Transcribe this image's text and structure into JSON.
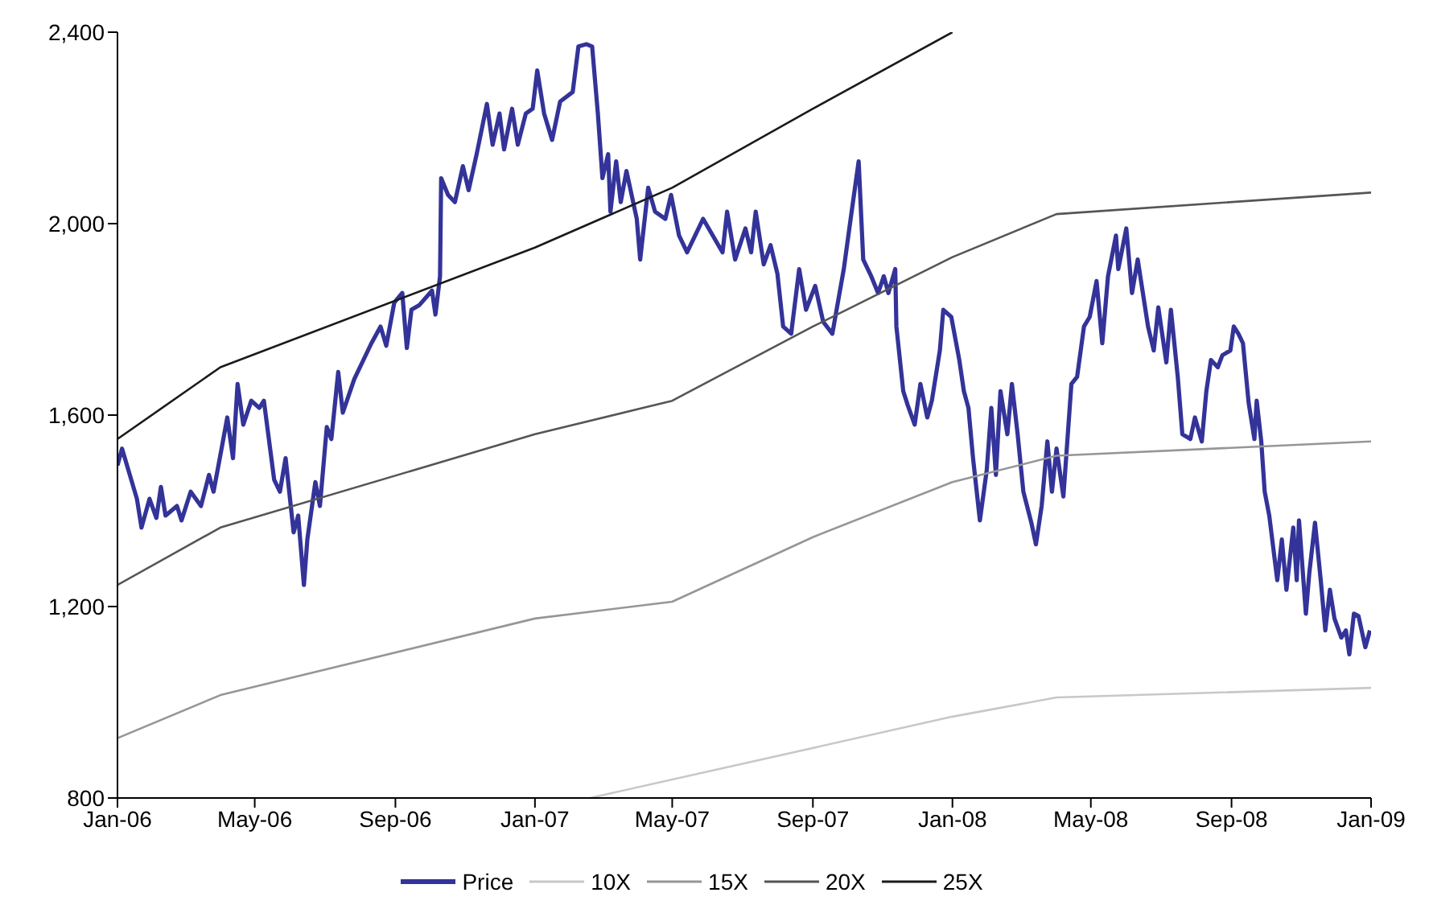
{
  "chart_data": {
    "type": "line",
    "xlim": [
      "2006-01-01",
      "2009-01-01"
    ],
    "xticks": [
      {
        "value": "2006-01-01",
        "label": "Jan-06"
      },
      {
        "value": "2006-05-01",
        "label": "May-06"
      },
      {
        "value": "2006-09-01",
        "label": "Sep-06"
      },
      {
        "value": "2007-01-01",
        "label": "Jan-07"
      },
      {
        "value": "2007-05-01",
        "label": "May-07"
      },
      {
        "value": "2007-09-01",
        "label": "Sep-07"
      },
      {
        "value": "2008-01-01",
        "label": "Jan-08"
      },
      {
        "value": "2008-05-01",
        "label": "May-08"
      },
      {
        "value": "2008-09-01",
        "label": "Sep-08"
      },
      {
        "value": "2009-01-01",
        "label": "Jan-09"
      }
    ],
    "ylim": [
      800,
      2400
    ],
    "yticks": [
      800,
      {
        "value": 1200,
        "label": "1,200"
      },
      {
        "value": 1600,
        "label": "1,600"
      },
      {
        "value": 2000,
        "label": "2,000"
      },
      {
        "value": 2400,
        "label": "2,400"
      }
    ],
    "legend": "bottom",
    "marker": "none",
    "line_style": "solid",
    "series": [
      {
        "name": "Price",
        "color": "#333399",
        "x": [
          "2006-01-01",
          "2006-01-05",
          "2006-01-18",
          "2006-01-22",
          "2006-01-29",
          "2006-02-04",
          "2006-02-08",
          "2006-02-12",
          "2006-02-22",
          "2006-02-26",
          "2006-03-06",
          "2006-03-15",
          "2006-03-22",
          "2006-03-26",
          "2006-04-02",
          "2006-04-07",
          "2006-04-12",
          "2006-04-16",
          "2006-04-21",
          "2006-04-28",
          "2006-05-05",
          "2006-05-09",
          "2006-05-18",
          "2006-05-23",
          "2006-05-28",
          "2006-06-04",
          "2006-06-08",
          "2006-06-13",
          "2006-06-16",
          "2006-06-23",
          "2006-06-27",
          "2006-07-03",
          "2006-07-07",
          "2006-07-13",
          "2006-07-17",
          "2006-07-27",
          "2006-08-11",
          "2006-08-19",
          "2006-08-24",
          "2006-08-31",
          "2006-09-07",
          "2006-09-11",
          "2006-09-15",
          "2006-09-22",
          "2006-10-03",
          "2006-10-06",
          "2006-10-10",
          "2006-10-11",
          "2006-10-17",
          "2006-10-23",
          "2006-10-30",
          "2006-11-04",
          "2006-11-11",
          "2006-11-20",
          "2006-11-25",
          "2006-12-01",
          "2006-12-05",
          "2006-12-12",
          "2006-12-17",
          "2006-12-24",
          "2006-12-30",
          "2007-01-03",
          "2007-01-09",
          "2007-01-16",
          "2007-01-23",
          "2007-02-03",
          "2007-02-08",
          "2007-02-15",
          "2007-02-20",
          "2007-02-25",
          "2007-03-01",
          "2007-03-06",
          "2007-03-08",
          "2007-03-13",
          "2007-03-17",
          "2007-03-22",
          "2007-03-31",
          "2007-04-03",
          "2007-04-10",
          "2007-04-16",
          "2007-04-25",
          "2007-04-30",
          "2007-05-07",
          "2007-05-14",
          "2007-05-28",
          "2007-06-14",
          "2007-06-18",
          "2007-06-25",
          "2007-07-04",
          "2007-07-09",
          "2007-07-13",
          "2007-07-20",
          "2007-07-26",
          "2007-08-01",
          "2007-08-06",
          "2007-08-13",
          "2007-08-20",
          "2007-08-26",
          "2007-09-03",
          "2007-09-10",
          "2007-09-18",
          "2007-09-28",
          "2007-10-04",
          "2007-10-11",
          "2007-10-15",
          "2007-10-22",
          "2007-10-28",
          "2007-11-02",
          "2007-11-06",
          "2007-11-12",
          "2007-11-13",
          "2007-11-19",
          "2007-11-23",
          "2007-11-29",
          "2007-12-04",
          "2007-12-10",
          "2007-12-14",
          "2007-12-21",
          "2007-12-24",
          "2007-12-31",
          "2008-01-07",
          "2008-01-11",
          "2008-01-15",
          "2008-01-19",
          "2008-01-25",
          "2008-01-31",
          "2008-02-04",
          "2008-02-08",
          "2008-02-12",
          "2008-02-18",
          "2008-02-22",
          "2008-02-27",
          "2008-03-03",
          "2008-03-10",
          "2008-03-14",
          "2008-03-19",
          "2008-03-24",
          "2008-03-28",
          "2008-04-01",
          "2008-04-07",
          "2008-04-14",
          "2008-04-19",
          "2008-04-25",
          "2008-04-30",
          "2008-05-06",
          "2008-05-11",
          "2008-05-16",
          "2008-05-23",
          "2008-05-25",
          "2008-06-01",
          "2008-06-06",
          "2008-06-11",
          "2008-06-20",
          "2008-06-25",
          "2008-06-29",
          "2008-07-06",
          "2008-07-10",
          "2008-07-16",
          "2008-07-20",
          "2008-07-27",
          "2008-07-31",
          "2008-08-06",
          "2008-08-10",
          "2008-08-14",
          "2008-08-20",
          "2008-08-24",
          "2008-08-31",
          "2008-09-03",
          "2008-09-07",
          "2008-09-11",
          "2008-09-16",
          "2008-09-21",
          "2008-09-23",
          "2008-09-27",
          "2008-09-30",
          "2008-10-04",
          "2008-10-11",
          "2008-10-15",
          "2008-10-19",
          "2008-10-25",
          "2008-10-28",
          "2008-10-30",
          "2008-11-05",
          "2008-11-08",
          "2008-11-13",
          "2008-11-18",
          "2008-11-22",
          "2008-11-26",
          "2008-11-30",
          "2008-12-06",
          "2008-12-10",
          "2008-12-13",
          "2008-12-17",
          "2008-12-21",
          "2008-12-27",
          "2008-12-31"
        ],
        "values": [
          1495,
          1530,
          1425,
          1365,
          1425,
          1385,
          1450,
          1390,
          1410,
          1380,
          1440,
          1410,
          1475,
          1440,
          1530,
          1595,
          1510,
          1665,
          1580,
          1630,
          1615,
          1630,
          1465,
          1440,
          1510,
          1355,
          1390,
          1245,
          1340,
          1460,
          1410,
          1575,
          1550,
          1690,
          1605,
          1675,
          1750,
          1785,
          1745,
          1835,
          1855,
          1740,
          1820,
          1830,
          1860,
          1810,
          1890,
          2095,
          2060,
          2045,
          2120,
          2070,
          2145,
          2250,
          2165,
          2230,
          2155,
          2240,
          2165,
          2230,
          2240,
          2320,
          2230,
          2175,
          2255,
          2275,
          2370,
          2375,
          2370,
          2230,
          2095,
          2145,
          2025,
          2130,
          2045,
          2110,
          2010,
          1925,
          2075,
          2025,
          2010,
          2060,
          1975,
          1940,
          2010,
          1940,
          2025,
          1925,
          1990,
          1940,
          2025,
          1915,
          1955,
          1895,
          1785,
          1770,
          1905,
          1820,
          1870,
          1795,
          1770,
          1905,
          2010,
          2130,
          1925,
          1890,
          1855,
          1890,
          1855,
          1905,
          1785,
          1650,
          1620,
          1580,
          1665,
          1595,
          1630,
          1735,
          1820,
          1805,
          1715,
          1650,
          1615,
          1510,
          1380,
          1485,
          1615,
          1475,
          1650,
          1560,
          1665,
          1560,
          1440,
          1375,
          1330,
          1410,
          1545,
          1440,
          1530,
          1430,
          1665,
          1680,
          1785,
          1805,
          1880,
          1750,
          1890,
          1975,
          1905,
          1990,
          1855,
          1925,
          1785,
          1735,
          1825,
          1710,
          1820,
          1680,
          1560,
          1550,
          1595,
          1545,
          1650,
          1715,
          1700,
          1725,
          1735,
          1785,
          1770,
          1750,
          1625,
          1550,
          1630,
          1545,
          1440,
          1390,
          1255,
          1340,
          1235,
          1365,
          1255,
          1380,
          1185,
          1270,
          1375,
          1255,
          1150,
          1235,
          1175,
          1135,
          1150,
          1100,
          1185,
          1180,
          1115,
          1150
        ]
      },
      {
        "name": "10X",
        "color": "#c8c8c8",
        "x": [
          "2007-02-18",
          "2008-01-01",
          "2008-04-01",
          "2009-01-01"
        ],
        "values": [
          800,
          970,
          1010,
          1030
        ]
      },
      {
        "name": "15X",
        "color": "#969696",
        "x": [
          "2006-01-01",
          "2006-04-01",
          "2007-01-01",
          "2007-05-01",
          "2007-09-01",
          "2008-01-01",
          "2008-04-01",
          "2009-01-01"
        ],
        "values": [
          925,
          1015,
          1175,
          1210,
          1345,
          1460,
          1515,
          1545
        ]
      },
      {
        "name": "20X",
        "color": "#555555",
        "x": [
          "2006-01-01",
          "2006-04-01",
          "2007-01-01",
          "2007-05-01",
          "2007-09-01",
          "2008-01-01",
          "2008-04-01",
          "2009-01-01"
        ],
        "values": [
          1245,
          1365,
          1560,
          1630,
          1785,
          1930,
          2020,
          2065
        ]
      },
      {
        "name": "25X",
        "color": "#1a1a1a",
        "x": [
          "2006-01-01",
          "2006-04-01",
          "2007-01-01",
          "2007-05-01",
          "2007-09-01",
          "2008-01-01"
        ],
        "values": [
          1550,
          1700,
          1950,
          2075,
          2240,
          2400
        ]
      }
    ]
  }
}
